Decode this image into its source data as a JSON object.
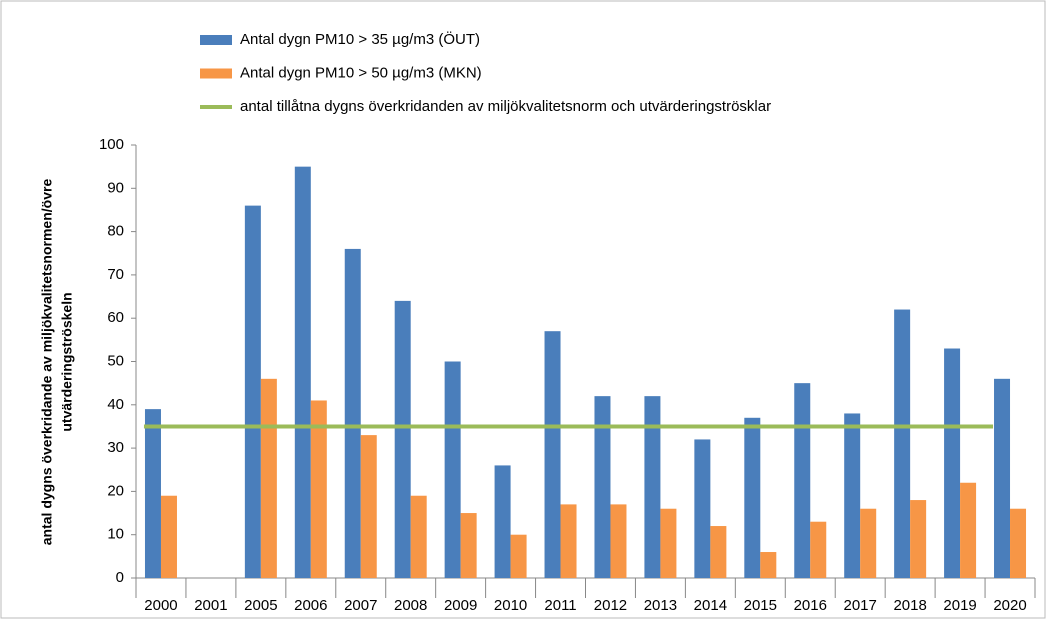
{
  "chart_data": {
    "type": "bar",
    "ylabel": [
      "antal dygns överkridande av miljökvalitetsnormen/övre",
      "utvärderingströskeln"
    ],
    "categories": [
      "2000",
      "2001",
      "2005",
      "2006",
      "2007",
      "2008",
      "2009",
      "2010",
      "2011",
      "2012",
      "2013",
      "2014",
      "2015",
      "2016",
      "2017",
      "2018",
      "2019",
      "2020"
    ],
    "series": [
      {
        "name": "Antal dygn PM10 > 35 µg/m3 (ÖUT)",
        "color": "#4a7ebb",
        "type": "bar",
        "values": [
          39,
          null,
          86,
          95,
          76,
          64,
          50,
          26,
          57,
          42,
          42,
          32,
          37,
          45,
          38,
          62,
          53,
          46
        ]
      },
      {
        "name": "Antal dygn PM10 > 50 µg/m3 (MKN)",
        "color": "#f79646",
        "type": "bar",
        "values": [
          19,
          null,
          46,
          41,
          33,
          19,
          15,
          10,
          17,
          17,
          16,
          12,
          6,
          13,
          16,
          18,
          22,
          16
        ]
      },
      {
        "name": "antal tillåtna dygns överkridanden av miljökvalitetsnorm och utvärderingströsklar",
        "color": "#9bbb59",
        "type": "line",
        "values": [
          35,
          35,
          35,
          35,
          35,
          35,
          35,
          35,
          35,
          35,
          35,
          35,
          35,
          35,
          35,
          35,
          35,
          35
        ]
      }
    ],
    "ylim": [
      0,
      100
    ],
    "yticks": [
      0,
      10,
      20,
      30,
      40,
      50,
      60,
      70,
      80,
      90,
      100
    ]
  }
}
